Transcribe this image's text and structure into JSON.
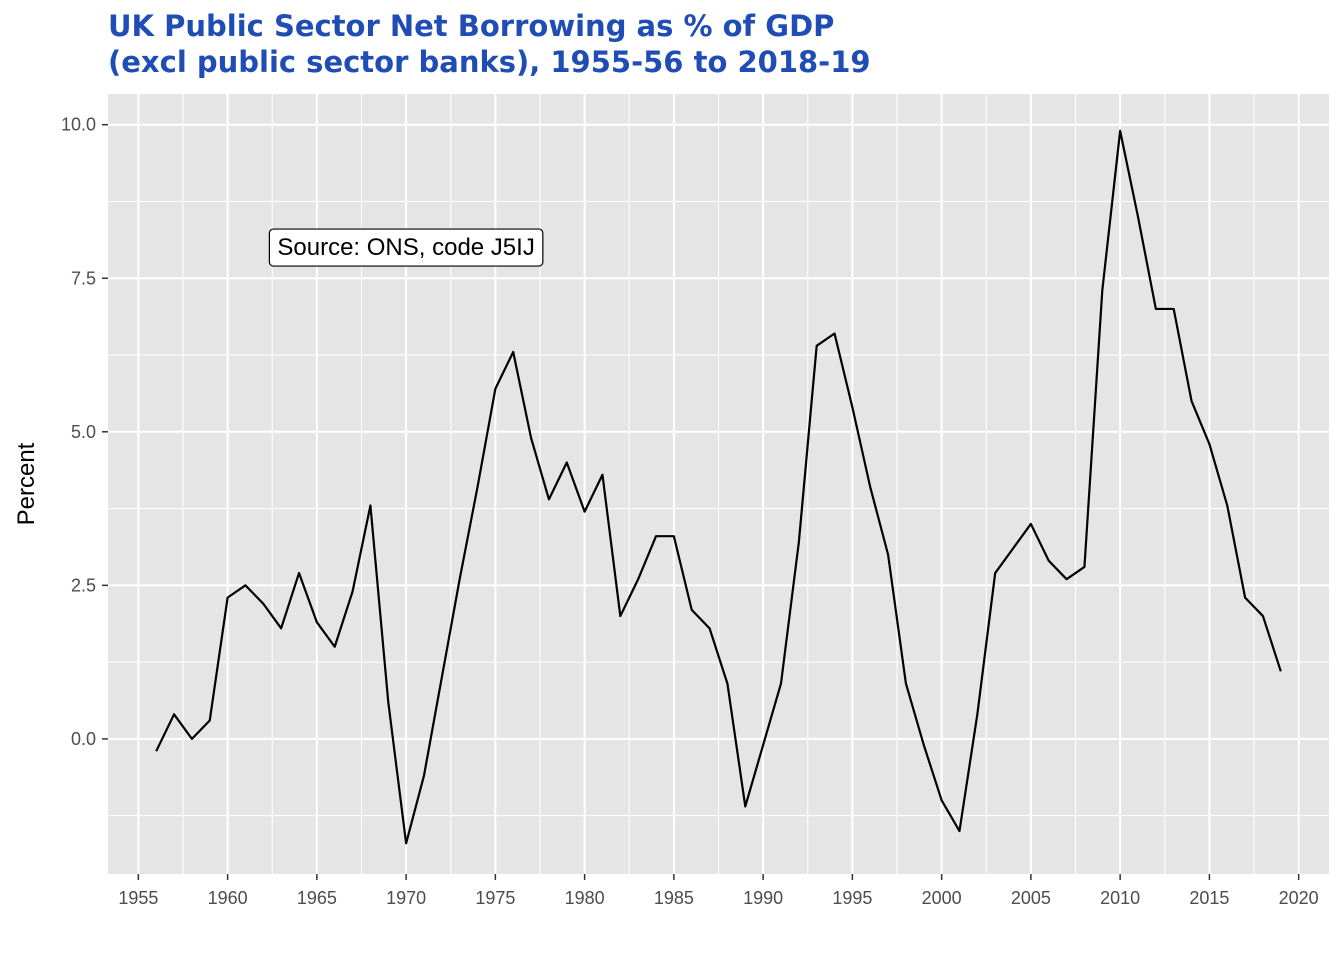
{
  "chart_data": {
    "type": "line",
    "title_lines": [
      "UK Public Sector Net Borrowing as % of GDP",
      "(excl public sector banks), 1955-56 to 2018-19"
    ],
    "xlabel": "",
    "ylabel": "Percent",
    "xlim": [
      1953.3,
      2021.7
    ],
    "ylim": [
      -2.2,
      10.5
    ],
    "x_ticks": [
      1955,
      1960,
      1965,
      1970,
      1975,
      1980,
      1985,
      1990,
      1995,
      2000,
      2005,
      2010,
      2015,
      2020
    ],
    "x_tick_labels": [
      "1955",
      "1960",
      "1965",
      "1970",
      "1975",
      "1980",
      "1985",
      "1990",
      "1995",
      "2000",
      "2005",
      "2010",
      "2015",
      "2020"
    ],
    "y_ticks": [
      0,
      2.5,
      5,
      7.5,
      10
    ],
    "y_tick_labels": [
      "0.0",
      "2.5",
      "5.0",
      "7.5",
      "10.0"
    ],
    "grid": true,
    "annotation": {
      "text": "Source: ONS, code J5IJ",
      "x": 1970,
      "y": 8
    },
    "colors": {
      "panel": "#e5e5e5",
      "grid": "#ffffff",
      "line": "#000000",
      "title": "#1f4db5"
    },
    "series": [
      {
        "x": [
          1956,
          1957,
          1958,
          1959,
          1960,
          1961,
          1962,
          1963,
          1964,
          1965,
          1966,
          1967,
          1968,
          1969,
          1970,
          1971,
          1972,
          1973,
          1974,
          1975,
          1976,
          1977,
          1978,
          1979,
          1980,
          1981,
          1982,
          1983,
          1984,
          1985,
          1986,
          1987,
          1988,
          1989,
          1990,
          1991,
          1992,
          1993,
          1994,
          1995,
          1996,
          1997,
          1998,
          1999,
          2000,
          2001,
          2002,
          2003,
          2004,
          2005,
          2006,
          2007,
          2008,
          2009,
          2010,
          2011,
          2012,
          2013,
          2014,
          2015,
          2016,
          2017,
          2018,
          2019
        ],
        "values": [
          -0.2,
          0.4,
          0.0,
          0.3,
          2.3,
          2.5,
          2.2,
          1.8,
          2.7,
          1.9,
          1.5,
          2.4,
          3.8,
          0.6,
          -1.7,
          -0.6,
          1.0,
          2.6,
          4.1,
          5.7,
          6.3,
          4.9,
          3.9,
          4.5,
          3.7,
          4.3,
          2.0,
          2.6,
          3.3,
          3.3,
          2.1,
          1.8,
          0.9,
          -1.1,
          -0.1,
          0.9,
          3.2,
          6.4,
          6.6,
          5.4,
          4.1,
          3.0,
          0.9,
          -0.1,
          -1.0,
          -1.5,
          0.4,
          2.7,
          3.1,
          3.5,
          2.9,
          2.6,
          2.8,
          7.3,
          9.9,
          8.5,
          7.0,
          7.0,
          5.5,
          4.8,
          3.8,
          2.3,
          2.0,
          1.1
        ]
      }
    ]
  }
}
